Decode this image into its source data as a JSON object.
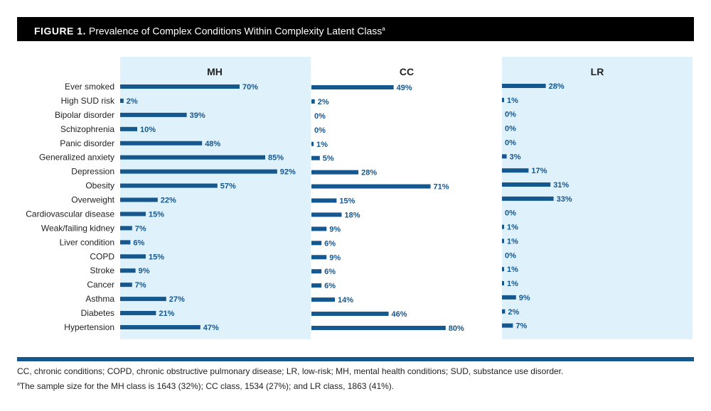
{
  "figure": {
    "label": "FIGURE 1.",
    "title": "Prevalence of Complex Conditions Within Complexity Latent Class",
    "title_superscript": "a"
  },
  "footnotes": {
    "abbreviations": "CC, chronic conditions; COPD, chronic obstructive pulmonary disease; LR, low-risk; MH, mental health conditions; SUD, substance use disorder.",
    "sample_note_marker": "a",
    "sample_note": "The sample size for the MH class is 1643 (32%); CC class, 1534 (27%); and LR class, 1863 (41%)."
  },
  "colors": {
    "bar": "#15578f",
    "panel_bg": "#dff1fa",
    "label_text": "#15578f"
  },
  "chart_data": {
    "type": "bar",
    "orientation": "horizontal",
    "value_unit": "%",
    "categories": [
      "Ever smoked",
      "High SUD risk",
      "Bipolar disorder",
      "Schizophrenia",
      "Panic disorder",
      "Generalized anxiety",
      "Depression",
      "Obesity",
      "Overweight",
      "Cardiovascular disease",
      "Weak/failing kidney",
      "Liver condition",
      "COPD",
      "Stroke",
      "Cancer",
      "Asthma",
      "Diabetes",
      "Hypertension"
    ],
    "series": [
      {
        "name": "MH",
        "values": [
          70,
          2,
          39,
          10,
          48,
          85,
          92,
          57,
          22,
          15,
          7,
          6,
          15,
          9,
          7,
          27,
          21,
          47
        ]
      },
      {
        "name": "CC",
        "values": [
          49,
          2,
          0,
          0,
          1,
          5,
          28,
          71,
          15,
          18,
          9,
          6,
          9,
          6,
          6,
          14,
          46,
          80
        ]
      },
      {
        "name": "LR",
        "values": [
          28,
          1,
          0,
          0,
          0,
          3,
          17,
          31,
          33,
          0,
          1,
          1,
          0,
          1,
          1,
          9,
          2,
          7
        ]
      }
    ]
  }
}
